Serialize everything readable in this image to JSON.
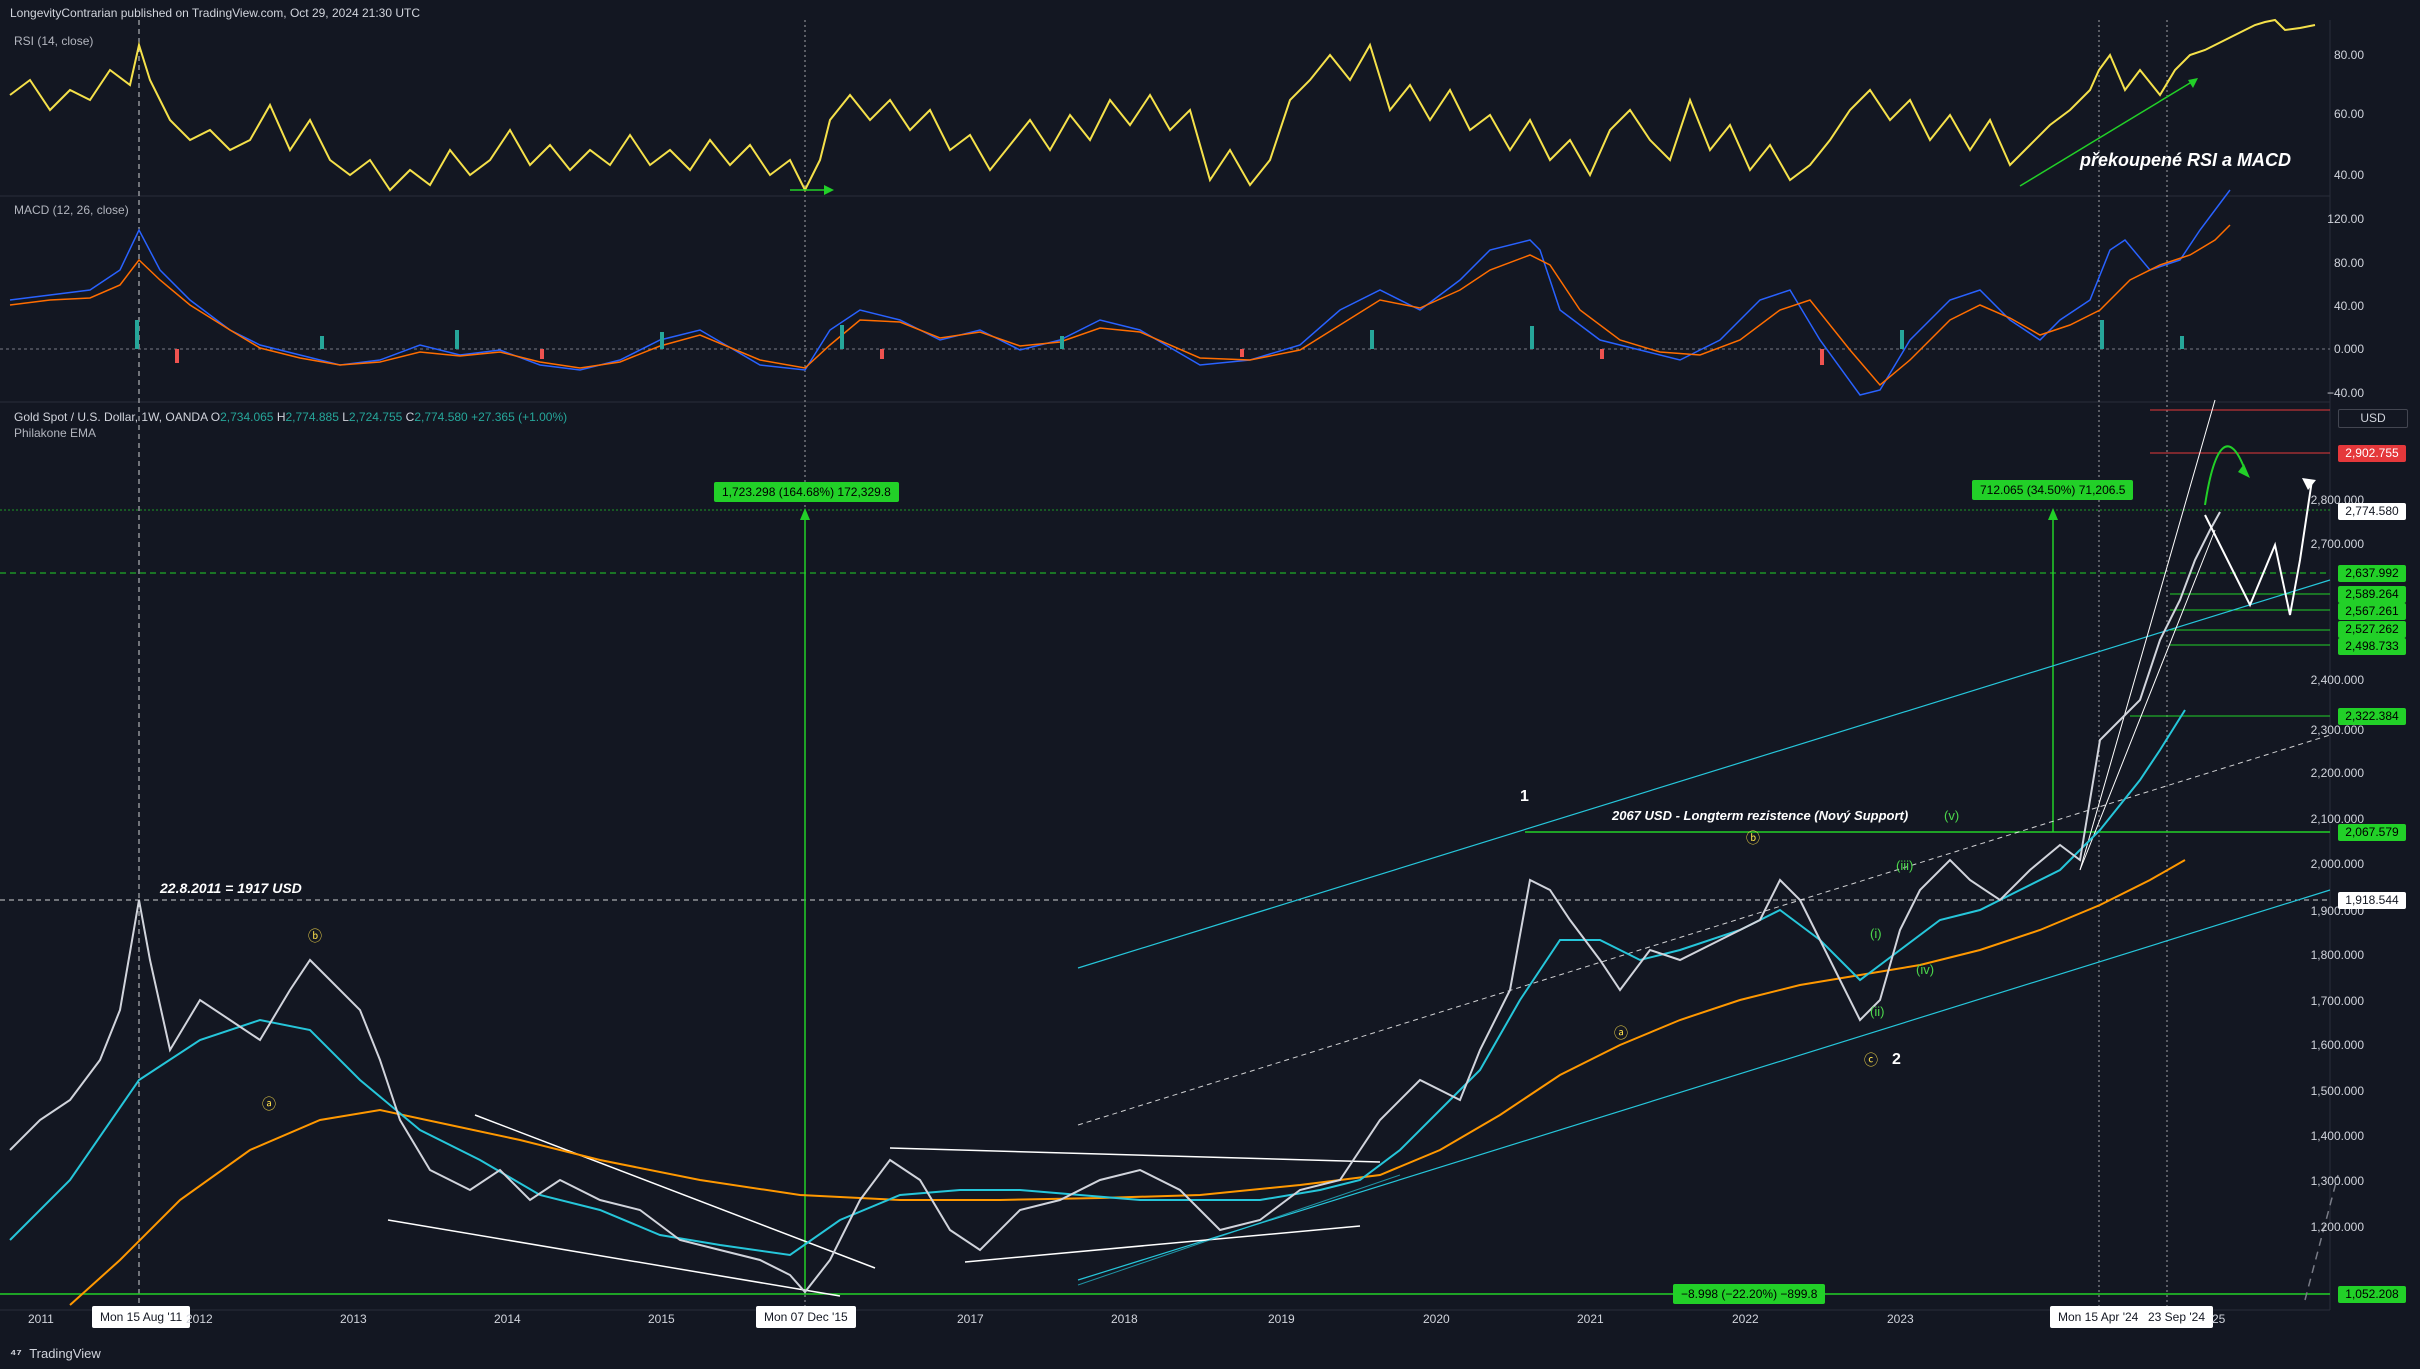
{
  "header": {
    "published": "LongevityContrarian published on TradingView.com, Oct 29, 2024 21:30 UTC"
  },
  "rsi": {
    "label": "RSI (14, close)",
    "ticks": [
      "80.00",
      "60.00",
      "40.00"
    ],
    "annotation": "překoupené RSI a MACD"
  },
  "macd": {
    "label": "MACD (12, 26, close)",
    "ticks": [
      "120.00",
      "80.00",
      "40.00",
      "0.000",
      "−40.00"
    ]
  },
  "main": {
    "symbol": "Gold Spot / U.S. Dollar, 1W, OANDA",
    "o_label": "O",
    "o_val": "2,734.065",
    "h_label": "H",
    "h_val": "2,774.885",
    "l_label": "L",
    "l_val": "2,724.755",
    "c_label": "C",
    "c_val": "2,774.580",
    "change": "+27.365 (+1.00%)",
    "indicator": "Philakone EMA",
    "currency": "USD",
    "price_ticks": [
      "2,800.000",
      "2,700.000",
      "2,400.000",
      "2,300.000",
      "2,200.000",
      "2,100.000",
      "2,000.000",
      "1,900.000",
      "1,800.000",
      "1,700.000",
      "1,600.000",
      "1,500.000",
      "1,400.000",
      "1,300.000",
      "1,200.000"
    ],
    "tags": {
      "red": "2,902.755",
      "last": "2,774.580",
      "t1": "2,637.992",
      "t2": "2,589.264",
      "t3": "2,567.261",
      "t4": "2,527.262",
      "t5": "2,498.733",
      "t6": "2,322.384",
      "t7": "2,067.579",
      "t8": "1,918.544",
      "t9": "1,052.208"
    },
    "measure1": "1,723.298 (164.68%) 172,329.8",
    "measure2": "712.065 (34.50%) 71,206.5",
    "measure3": "−8.998 (−22.20%) −899.8",
    "ann_2011": "22.8.2011 = 1917 USD",
    "ann_resist": "2067 USD - Longterm rezistence (Nový Support)",
    "waves": {
      "b1": "ⓑ",
      "a1": "ⓐ",
      "w1": "1",
      "b2": "ⓑ",
      "a2": "ⓐ",
      "c2": "ⓒ",
      "w2": "2",
      "i": "(i)",
      "ii": "(ii)",
      "iii": "(iii)",
      "iv": "(iv)",
      "v": "(v)"
    }
  },
  "time_axis": {
    "years": [
      "2011",
      "2013",
      "2014",
      "2015",
      "2017",
      "2018",
      "2019",
      "2020",
      "2021",
      "2022",
      "2023",
      "25"
    ],
    "y2012": "2012",
    "box1": "Mon 15 Aug '11",
    "box2": "Mon 07 Dec '15",
    "box3": "Mon 15 Apr '24",
    "box4": "23 Sep '24"
  },
  "footer": {
    "brand": "TradingView"
  },
  "colors": {
    "bg": "#131722",
    "up": "#26a69a",
    "down": "#ef5350",
    "rsi": "#f5e14a",
    "green_tag": "#22d028",
    "red_tag": "#e5383b"
  }
}
